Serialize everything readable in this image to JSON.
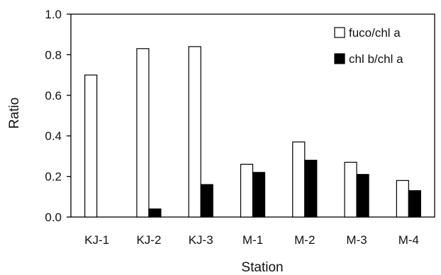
{
  "chart_data": {
    "type": "bar",
    "xlabel": "Station",
    "ylabel": "Ratio",
    "ylim": [
      0,
      1.0
    ],
    "yticks": [
      "0.0",
      "0.2",
      "0.4",
      "0.6",
      "0.8",
      "1.0"
    ],
    "categories": [
      "KJ-1",
      "KJ-2",
      "KJ-3",
      "M-1",
      "M-2",
      "M-3",
      "M-4"
    ],
    "series": [
      {
        "name": "fuco/chl a",
        "values": [
          0.7,
          0.83,
          0.84,
          0.26,
          0.37,
          0.27,
          0.18
        ],
        "color": "#ffffff"
      },
      {
        "name": "chl b/chl a",
        "values": [
          0.0,
          0.04,
          0.16,
          0.22,
          0.28,
          0.21,
          0.13
        ],
        "color": "#000000"
      }
    ],
    "legend_position": "top-right",
    "grid": false
  }
}
